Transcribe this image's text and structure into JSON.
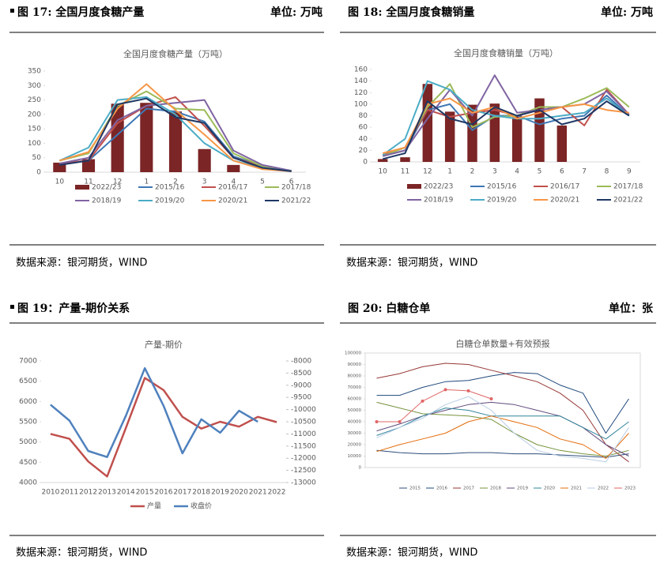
{
  "panels": [
    {
      "caption": "图 17: 全国月度食糖产量",
      "unit": "单位: 万吨",
      "source": "数据来源：银河期货，WIND"
    },
    {
      "caption": "图 18: 全国月度食糖销量",
      "unit": "单位: 万吨",
      "source": "数据来源：银河期货，WIND"
    },
    {
      "caption": "图 19：产量-期价关系",
      "source": "数据来源：银河期货，WIND"
    },
    {
      "caption": "图 20: 白糖仓单",
      "unit": "单位：张",
      "source": "数据来源：银河期货，WIND"
    }
  ],
  "chart_data": [
    {
      "type": "combo",
      "title": "全国月度食糖产量（万吨）",
      "categories": [
        "10",
        "11",
        "12",
        "1",
        "2",
        "3",
        "4",
        "5",
        "6"
      ],
      "ylim": [
        0,
        350
      ],
      "yticks": [
        0,
        50,
        100,
        150,
        200,
        250,
        300,
        350
      ],
      "series": [
        {
          "name": "2022/23",
          "kind": "bar",
          "color": "#7b2526",
          "values": [
            33,
            45,
            237,
            240,
            210,
            80,
            25,
            null,
            null
          ]
        },
        {
          "name": "2015/16",
          "kind": "line",
          "color": "#3f78b5",
          "values": [
            30,
            40,
            130,
            220,
            210,
            175,
            55,
            20,
            5
          ]
        },
        {
          "name": "2016/17",
          "kind": "line",
          "color": "#c0504d",
          "values": [
            30,
            40,
            170,
            230,
            260,
            160,
            50,
            20,
            5
          ]
        },
        {
          "name": "2017/18",
          "kind": "line",
          "color": "#9bbb59",
          "values": [
            40,
            65,
            230,
            280,
            220,
            215,
            65,
            20,
            5
          ]
        },
        {
          "name": "2018/19",
          "kind": "line",
          "color": "#8064a2",
          "values": [
            30,
            50,
            180,
            230,
            240,
            250,
            75,
            25,
            5
          ]
        },
        {
          "name": "2019/20",
          "kind": "line",
          "color": "#4bacc6",
          "values": [
            40,
            85,
            250,
            260,
            200,
            100,
            40,
            15,
            3
          ]
        },
        {
          "name": "2020/21",
          "kind": "line",
          "color": "#f79646",
          "values": [
            40,
            70,
            220,
            305,
            215,
            130,
            40,
            10,
            3
          ]
        },
        {
          "name": "2021/22",
          "kind": "line",
          "color": "#1f3864",
          "values": [
            25,
            40,
            235,
            255,
            190,
            170,
            50,
            15,
            3
          ]
        }
      ]
    },
    {
      "type": "combo",
      "title": "全国月度食糖销量（万吨）",
      "categories": [
        "10",
        "11",
        "12",
        "1",
        "2",
        "3",
        "4",
        "5",
        "6",
        "7",
        "8",
        "9"
      ],
      "ylim": [
        0,
        160
      ],
      "yticks": [
        0,
        20,
        40,
        60,
        80,
        100,
        120,
        140,
        160
      ],
      "series": [
        {
          "name": "2022/23",
          "kind": "bar",
          "color": "#7b2526",
          "values": [
            5,
            8,
            135,
            87,
            99,
            101,
            80,
            110,
            63,
            null,
            null,
            null
          ]
        },
        {
          "name": "2015/16",
          "kind": "line",
          "color": "#3f78b5",
          "values": [
            10,
            20,
            90,
            100,
            55,
            80,
            80,
            65,
            75,
            80,
            115,
            80
          ]
        },
        {
          "name": "2016/17",
          "kind": "line",
          "color": "#c0504d",
          "values": [
            12,
            25,
            90,
            78,
            85,
            90,
            80,
            90,
            95,
            63,
            125,
            82
          ]
        },
        {
          "name": "2017/18",
          "kind": "line",
          "color": "#9bbb59",
          "values": [
            10,
            25,
            95,
            135,
            60,
            78,
            80,
            95,
            95,
            110,
            128,
            95
          ]
        },
        {
          "name": "2018/19",
          "kind": "line",
          "color": "#8064a2",
          "values": [
            10,
            20,
            75,
            125,
            80,
            150,
            85,
            90,
            95,
            100,
            122,
            82
          ]
        },
        {
          "name": "2019/20",
          "kind": "line",
          "color": "#4bacc6",
          "values": [
            12,
            40,
            140,
            125,
            90,
            80,
            75,
            75,
            80,
            85,
            110,
            80
          ]
        },
        {
          "name": "2020/21",
          "kind": "line",
          "color": "#f79646",
          "values": [
            15,
            25,
            100,
            110,
            85,
            95,
            75,
            85,
            95,
            100,
            90,
            85
          ]
        },
        {
          "name": "2021/22",
          "kind": "line",
          "color": "#1f3864",
          "values": [
            5,
            15,
            105,
            75,
            65,
            95,
            80,
            90,
            65,
            75,
            105,
            80
          ]
        }
      ]
    },
    {
      "type": "line",
      "title": "产量-期价",
      "categories": [
        "2010",
        "2011",
        "2012",
        "2013",
        "2014",
        "2015",
        "2016",
        "2017",
        "2018",
        "2019",
        "2020",
        "2021",
        "2022"
      ],
      "ylim": [
        4000,
        7000
      ],
      "yticks": [
        4000,
        4500,
        5000,
        5500,
        6000,
        6500,
        7000
      ],
      "y2lim": [
        -13000,
        -8000
      ],
      "y2ticks": [
        -13000,
        -12500,
        -12000,
        -11500,
        -11000,
        -10500,
        -10000,
        -9500,
        -9000,
        -8500,
        -8000
      ],
      "series": [
        {
          "name": "产量",
          "color": "#c0504d",
          "values": [
            5200,
            5080,
            4520,
            4150,
            5350,
            6580,
            6280,
            5620,
            5330,
            5500,
            5380,
            5620,
            5490
          ]
        },
        {
          "name": "收盘价",
          "color": "#4f81bd",
          "axis": "y2",
          "values": [
            -9800,
            -10450,
            -11700,
            -11950,
            -10250,
            -8300,
            -9850,
            -11800,
            -10400,
            -10950,
            -10050,
            -10500,
            null
          ]
        }
      ]
    },
    {
      "type": "line",
      "title": "白糖仓单数量+有效预报",
      "categories": [
        null,
        null,
        null,
        null,
        null,
        null,
        null,
        null,
        null,
        null,
        null,
        null
      ],
      "ylim": [
        0,
        100000
      ],
      "yticks": [
        0,
        10000,
        20000,
        30000,
        40000,
        50000,
        60000,
        70000,
        80000,
        90000,
        100000
      ],
      "series": [
        {
          "name": "2015",
          "color": "#2e4d7b",
          "values": [
            15000,
            13000,
            12000,
            12000,
            13000,
            13000,
            12000,
            12000,
            11000,
            10000,
            9000,
            12000
          ]
        },
        {
          "name": "2016",
          "color": "#1f497d",
          "values": [
            63000,
            63000,
            70000,
            75000,
            76000,
            80000,
            83000,
            82000,
            72000,
            65000,
            30000,
            60000
          ]
        },
        {
          "name": "2017",
          "color": "#953735",
          "values": [
            78000,
            82000,
            88000,
            91000,
            90000,
            85000,
            80000,
            75000,
            65000,
            50000,
            20000,
            5000
          ]
        },
        {
          "name": "2018",
          "color": "#77933c",
          "values": [
            57000,
            52000,
            47000,
            46000,
            45000,
            42000,
            30000,
            20000,
            15000,
            12000,
            10000,
            15000
          ]
        },
        {
          "name": "2019",
          "color": "#604a7b",
          "values": [
            32000,
            38000,
            45000,
            50000,
            55000,
            57000,
            55000,
            50000,
            45000,
            35000,
            20000,
            10000
          ]
        },
        {
          "name": "2020",
          "color": "#31859c",
          "values": [
            28000,
            35000,
            45000,
            52000,
            50000,
            45000,
            45000,
            45000,
            45000,
            35000,
            25000,
            40000
          ]
        },
        {
          "name": "2021",
          "color": "#e46c0a",
          "values": [
            14000,
            20000,
            25000,
            30000,
            40000,
            45000,
            40000,
            35000,
            25000,
            20000,
            8000,
            30000
          ]
        },
        {
          "name": "2022",
          "color": "#b9cde5",
          "values": [
            26000,
            35000,
            43000,
            55000,
            62000,
            50000,
            30000,
            15000,
            10000,
            8000,
            5000,
            35000
          ]
        },
        {
          "name": "2023",
          "color": "#e06666",
          "markers": true,
          "values": [
            40000,
            40000,
            58000,
            68000,
            67000,
            60000,
            null,
            null,
            null,
            null,
            null,
            null
          ]
        }
      ]
    }
  ]
}
